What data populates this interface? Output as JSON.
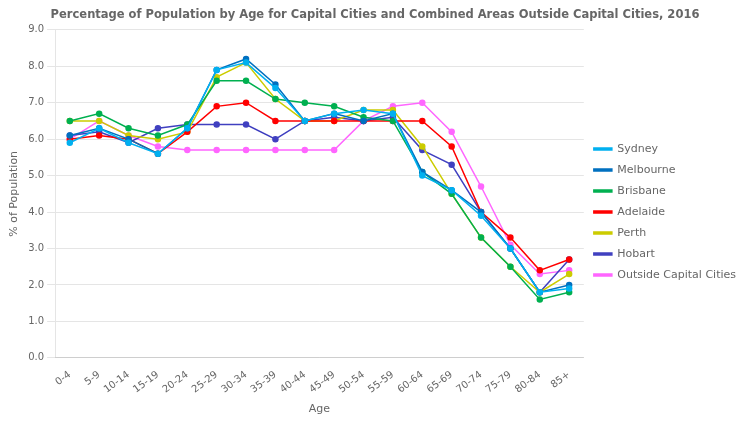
{
  "chart_data": {
    "type": "line",
    "title": "Percentage of Population by Age for Capital Cities and Combined Areas Outside Capital Cities, 2016",
    "xlabel": "Age",
    "ylabel": "% of Population",
    "categories": [
      "0-4",
      "5-9",
      "10-14",
      "15-19",
      "20-24",
      "25-29",
      "30-34",
      "35-39",
      "40-44",
      "45-49",
      "50-54",
      "55-59",
      "60-64",
      "65-69",
      "70-74",
      "75-79",
      "80-84",
      "85+"
    ],
    "series": [
      {
        "name": "Sydney",
        "color": "#00B0F0",
        "values": [
          5.9,
          6.3,
          5.9,
          5.6,
          6.3,
          7.9,
          8.1,
          7.4,
          6.5,
          6.7,
          6.8,
          6.7,
          5.0,
          4.6,
          3.9,
          3.0,
          1.8,
          1.9
        ]
      },
      {
        "name": "Melbourne",
        "color": "#0070C0",
        "values": [
          6.1,
          6.3,
          6.0,
          5.6,
          6.3,
          7.9,
          8.2,
          7.5,
          6.5,
          6.7,
          6.5,
          6.7,
          5.1,
          4.6,
          4.0,
          3.0,
          1.8,
          2.0
        ]
      },
      {
        "name": "Brisbane",
        "color": "#00B050",
        "values": [
          6.5,
          6.7,
          6.3,
          6.1,
          6.4,
          7.6,
          7.6,
          7.1,
          7.0,
          6.9,
          6.6,
          6.5,
          5.1,
          4.5,
          3.3,
          2.5,
          1.6,
          1.8
        ]
      },
      {
        "name": "Adelaide",
        "color": "#FF0000",
        "values": [
          6.0,
          6.1,
          6.0,
          5.6,
          6.2,
          6.9,
          7.0,
          6.5,
          6.5,
          6.5,
          6.5,
          6.5,
          6.5,
          5.8,
          4.0,
          3.3,
          2.4,
          2.7
        ]
      },
      {
        "name": "Perth",
        "color": "#CCCC00",
        "values": [
          6.5,
          6.5,
          6.1,
          6.0,
          6.2,
          7.7,
          8.1,
          7.1,
          6.5,
          6.5,
          6.8,
          6.8,
          5.8,
          4.5,
          3.3,
          2.5,
          1.8,
          2.3
        ]
      },
      {
        "name": "Hobart",
        "color": "#4040C0",
        "values": [
          6.1,
          6.2,
          5.9,
          6.3,
          6.4,
          6.4,
          6.4,
          6.0,
          6.5,
          6.6,
          6.5,
          6.6,
          5.7,
          5.3,
          4.0,
          3.0,
          1.8,
          2.7
        ]
      },
      {
        "name": "Outside Capital Cities",
        "color": "#FF66FF",
        "values": [
          6.0,
          6.5,
          6.1,
          5.8,
          5.7,
          5.7,
          5.7,
          5.7,
          5.7,
          5.7,
          6.5,
          6.9,
          7.0,
          6.2,
          4.7,
          3.1,
          2.3,
          2.4
        ]
      }
    ],
    "ylim": [
      0.0,
      9.0
    ],
    "yticks": [
      {
        "value": 0.0,
        "label": "0.0"
      },
      {
        "value": 1.0,
        "label": "1.0"
      },
      {
        "value": 2.0,
        "label": "2.0"
      },
      {
        "value": 3.0,
        "label": "3.0"
      },
      {
        "value": 4.0,
        "label": "4.0"
      },
      {
        "value": 5.0,
        "label": "5.0"
      },
      {
        "value": 6.0,
        "label": "6.0"
      },
      {
        "value": 7.0,
        "label": "7.0"
      },
      {
        "value": 8.0,
        "label": "8.0"
      },
      {
        "value": 9.0,
        "label": "9.0"
      }
    ],
    "grid": "y",
    "legend": "right",
    "marker": "circle"
  }
}
